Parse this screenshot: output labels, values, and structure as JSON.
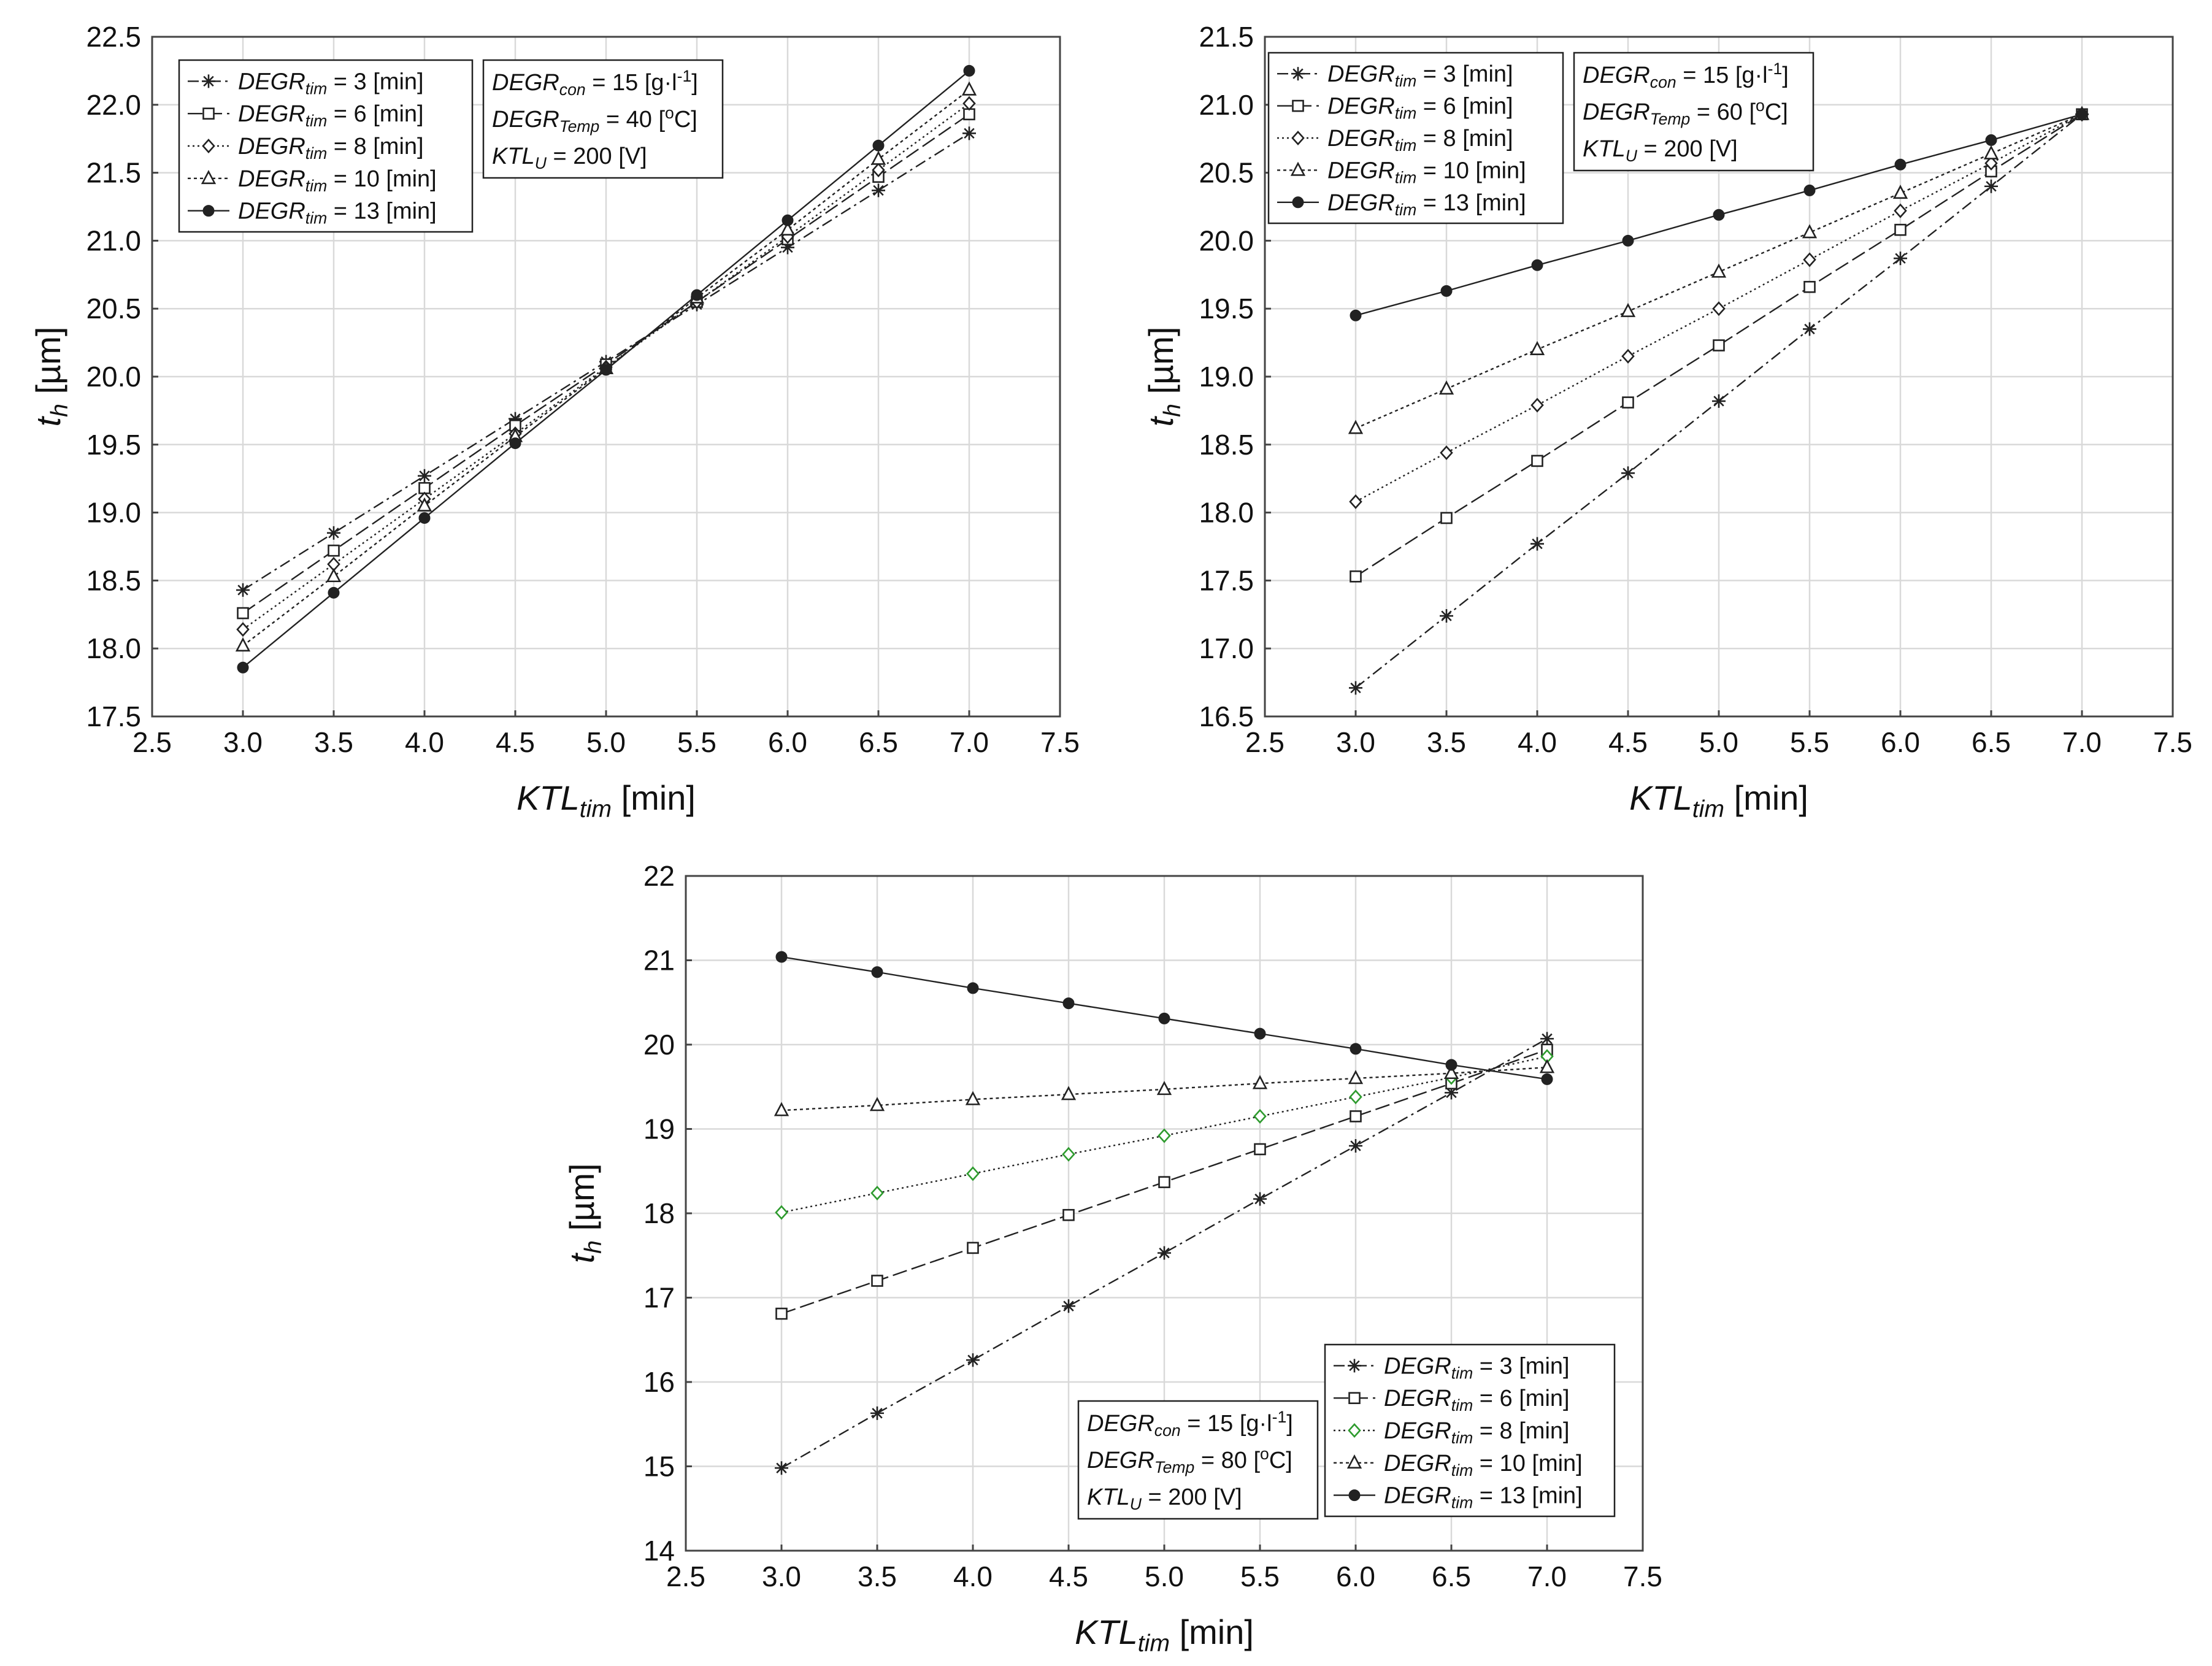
{
  "chart_data": [
    {
      "type": "line",
      "xlabel": {
        "main": "KTL",
        "sub": "tim",
        "unit": " [min]"
      },
      "ylabel": {
        "main": "t",
        "sub": "h",
        "unit": " [µm]"
      },
      "xlim": [
        2.5,
        7.5
      ],
      "ylim": [
        17.5,
        22.5
      ],
      "xticks": [
        "2.5",
        "3.0",
        "3.5",
        "4.0",
        "4.5",
        "5.0",
        "5.5",
        "6.0",
        "6.5",
        "7.0",
        "7.5"
      ],
      "yticks": [
        "17.5",
        "18.0",
        "18.5",
        "19.0",
        "19.5",
        "20.0",
        "20.5",
        "21.0",
        "21.5",
        "22.0",
        "22.5"
      ],
      "grid": true,
      "legend_position": "top-left",
      "info_position": "top-left",
      "x": [
        3.0,
        3.5,
        4.0,
        4.5,
        5.0,
        5.5,
        6.0,
        6.5,
        7.0
      ],
      "info": [
        {
          "main": "DEGR",
          "sub": "con",
          "rest": " = 15 [g·l",
          "sup": "-1",
          "end": "]"
        },
        {
          "main": "DEGR",
          "sub": "Temp",
          "rest": " = 40 [",
          "sup": "o",
          "end": "C]"
        },
        {
          "main": "KTL",
          "sub": "U",
          "rest": " = 200 [V]",
          "sup": "",
          "end": ""
        }
      ],
      "series": [
        {
          "name": "DEGR",
          "sub": "tim",
          "label": " = 3  [min]",
          "marker": "asterisk",
          "dash": "dashdot",
          "values": [
            18.43,
            18.85,
            19.27,
            19.69,
            20.11,
            20.53,
            20.95,
            21.37,
            21.79
          ]
        },
        {
          "name": "DEGR",
          "sub": "tim",
          "label": " = 6  [min]",
          "marker": "square",
          "dash": "longdash",
          "values": [
            18.26,
            18.72,
            19.18,
            19.64,
            20.09,
            20.55,
            21.01,
            21.47,
            21.93
          ]
        },
        {
          "name": "DEGR",
          "sub": "tim",
          "label": " = 8  [min]",
          "marker": "diamond",
          "dash": "dotted",
          "values": [
            18.14,
            18.62,
            19.1,
            19.58,
            20.07,
            20.55,
            21.03,
            21.52,
            22.01
          ]
        },
        {
          "name": "DEGR",
          "sub": "tim",
          "label": " = 10  [min]",
          "marker": "triangle",
          "dash": "smalldot",
          "values": [
            18.02,
            18.53,
            19.05,
            19.56,
            20.06,
            20.58,
            21.08,
            21.6,
            22.11
          ]
        },
        {
          "name": "DEGR",
          "sub": "tim",
          "label": " = 13  [min]",
          "marker": "circle",
          "dash": "solid",
          "values": [
            17.86,
            18.41,
            18.96,
            19.51,
            20.05,
            20.6,
            21.15,
            21.7,
            22.25
          ]
        }
      ]
    },
    {
      "type": "line",
      "xlabel": {
        "main": "KTL",
        "sub": "tim",
        "unit": " [min]"
      },
      "ylabel": {
        "main": "t",
        "sub": "h",
        "unit": " [µm]"
      },
      "xlim": [
        2.5,
        7.5
      ],
      "ylim": [
        16.5,
        21.5
      ],
      "xticks": [
        "2.5",
        "3.0",
        "3.5",
        "4.0",
        "4.5",
        "5.0",
        "5.5",
        "6.0",
        "6.5",
        "7.0",
        "7.5"
      ],
      "yticks": [
        "16.5",
        "17.0",
        "17.5",
        "18.0",
        "18.5",
        "19.0",
        "19.5",
        "20.0",
        "20.5",
        "21.0",
        "21.5"
      ],
      "grid": true,
      "legend_position": "top-left",
      "info_position": "top-left",
      "x": [
        3.0,
        3.5,
        4.0,
        4.5,
        5.0,
        5.5,
        6.0,
        6.5,
        7.0
      ],
      "info": [
        {
          "main": "DEGR",
          "sub": "con",
          "rest": " = 15 [g·l",
          "sup": "-1",
          "end": "]"
        },
        {
          "main": "DEGR",
          "sub": "Temp",
          "rest": " = 60 [",
          "sup": "o",
          "end": "C]"
        },
        {
          "main": "KTL",
          "sub": "U",
          "rest": " = 200 [V]",
          "sup": "",
          "end": ""
        }
      ],
      "series": [
        {
          "name": "DEGR",
          "sub": "tim",
          "label": " = 3  [min]",
          "marker": "asterisk",
          "dash": "dashdot",
          "values": [
            16.71,
            17.24,
            17.77,
            18.29,
            18.82,
            19.35,
            19.87,
            20.4,
            20.93
          ]
        },
        {
          "name": "DEGR",
          "sub": "tim",
          "label": " = 6  [min]",
          "marker": "square",
          "dash": "longdash",
          "values": [
            17.53,
            17.96,
            18.38,
            18.81,
            19.23,
            19.66,
            20.08,
            20.51,
            20.93
          ]
        },
        {
          "name": "DEGR",
          "sub": "tim",
          "label": " = 8  [min]",
          "marker": "diamond",
          "dash": "dotted",
          "values": [
            18.08,
            18.44,
            18.79,
            19.15,
            19.5,
            19.86,
            20.22,
            20.57,
            20.93
          ]
        },
        {
          "name": "DEGR",
          "sub": "tim",
          "label": " = 10  [min]",
          "marker": "triangle",
          "dash": "smalldot",
          "values": [
            18.62,
            18.91,
            19.2,
            19.48,
            19.77,
            20.06,
            20.35,
            20.64,
            20.93
          ]
        },
        {
          "name": "DEGR",
          "sub": "tim",
          "label": " = 13  [min]",
          "marker": "circle",
          "dash": "solid",
          "values": [
            19.45,
            19.63,
            19.82,
            20.0,
            20.19,
            20.37,
            20.56,
            20.74,
            20.93
          ]
        }
      ]
    },
    {
      "type": "line",
      "xlabel": {
        "main": "KTL",
        "sub": "tim",
        "unit": " [min]"
      },
      "ylabel": {
        "main": "t",
        "sub": "h",
        "unit": " [µm]"
      },
      "xlim": [
        2.5,
        7.5
      ],
      "ylim": [
        14,
        22
      ],
      "xticks": [
        "2.5",
        "3.0",
        "3.5",
        "4.0",
        "4.5",
        "5.0",
        "5.5",
        "6.0",
        "6.5",
        "7.0",
        "7.5"
      ],
      "yticks": [
        "14",
        "15",
        "16",
        "17",
        "18",
        "19",
        "20",
        "21",
        "22"
      ],
      "grid": true,
      "legend_position": "bottom-right",
      "info_position": "bottom-right",
      "x": [
        3.0,
        3.5,
        4.0,
        4.5,
        5.0,
        5.5,
        6.0,
        6.5,
        7.0
      ],
      "info": [
        {
          "main": "DEGR",
          "sub": "con",
          "rest": " = 15 [g·l",
          "sup": "-1",
          "end": "]"
        },
        {
          "main": "DEGR",
          "sub": "Temp",
          "rest": " = 80 [",
          "sup": "o",
          "end": "C]"
        },
        {
          "main": "KTL",
          "sub": "U",
          "rest": " = 200 [V]",
          "sup": "",
          "end": ""
        }
      ],
      "series": [
        {
          "name": "DEGR",
          "sub": "tim",
          "label": " = 3  [min]",
          "marker": "asterisk",
          "dash": "dashdot",
          "values": [
            14.98,
            15.63,
            16.26,
            16.9,
            17.53,
            18.17,
            18.8,
            19.43,
            20.07
          ]
        },
        {
          "name": "DEGR",
          "sub": "tim",
          "label": " = 6  [min]",
          "marker": "square",
          "dash": "longdash",
          "values": [
            16.81,
            17.2,
            17.59,
            17.98,
            18.37,
            18.76,
            19.15,
            19.54,
            19.94
          ]
        },
        {
          "name": "DEGR",
          "sub": "tim",
          "label": " = 8  [min]",
          "marker": "diamond",
          "dash": "dotted",
          "color": "#2e9b2e",
          "values": [
            18.01,
            18.24,
            18.47,
            18.7,
            18.92,
            19.15,
            19.38,
            19.61,
            19.86
          ]
        },
        {
          "name": "DEGR",
          "sub": "tim",
          "label": " = 10  [min]",
          "marker": "triangle",
          "dash": "smalldot",
          "values": [
            19.22,
            19.28,
            19.35,
            19.41,
            19.47,
            19.54,
            19.6,
            19.66,
            19.73
          ]
        },
        {
          "name": "DEGR",
          "sub": "tim",
          "label": " = 13  [min]",
          "marker": "circle",
          "dash": "solid",
          "values": [
            21.04,
            20.86,
            20.67,
            20.49,
            20.31,
            20.13,
            19.95,
            19.76,
            19.59
          ]
        }
      ]
    }
  ],
  "colors": {
    "line": "#222222",
    "grid": "#d9d9d9",
    "frame": "#444444",
    "highlight": "#2e9b2e"
  }
}
